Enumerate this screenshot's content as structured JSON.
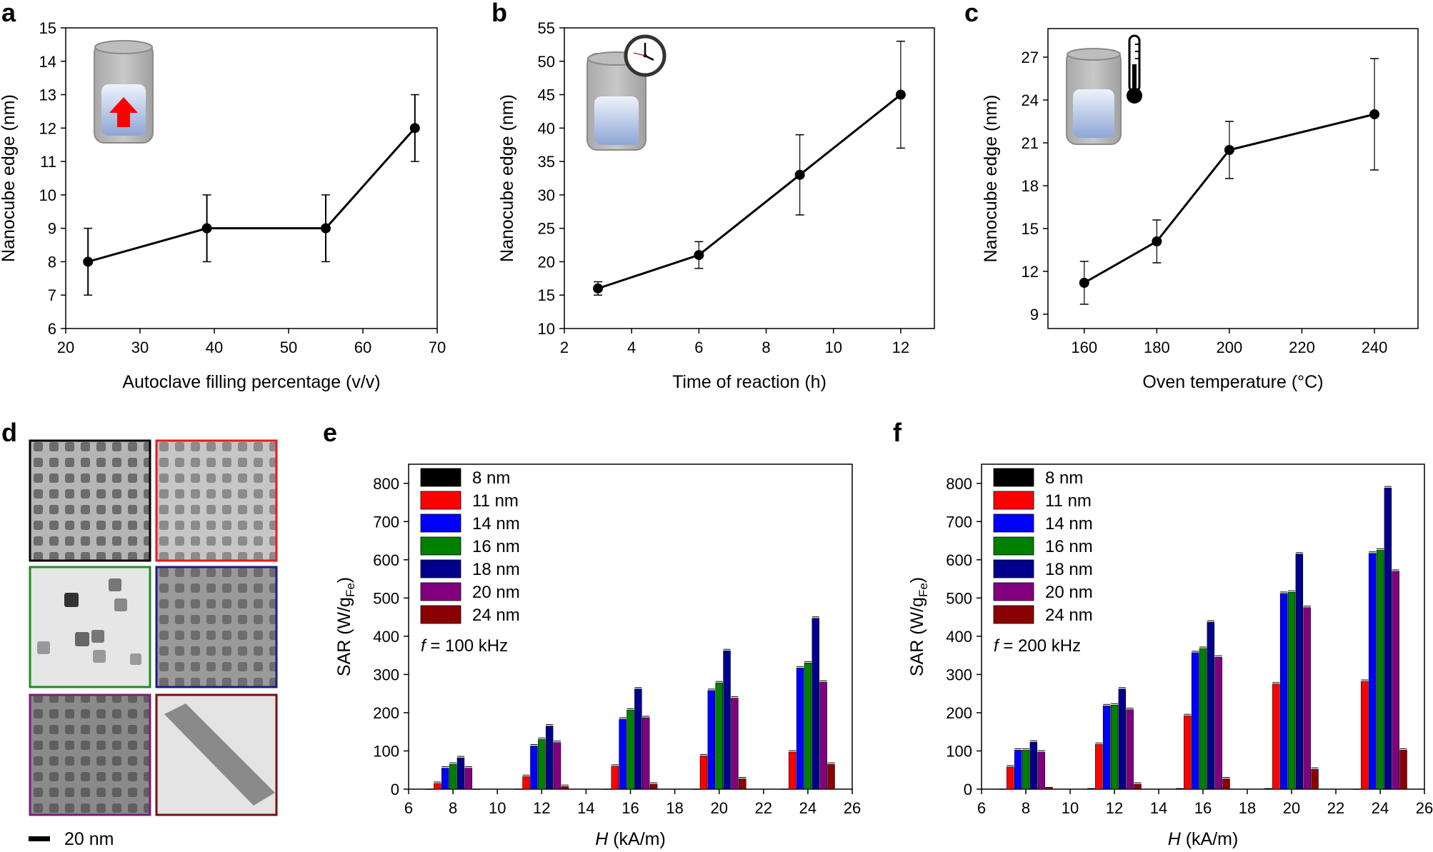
{
  "panels": {
    "a": "a",
    "b": "b",
    "c": "c",
    "d": "d",
    "e": "e",
    "f": "f"
  },
  "micrograph": {
    "scale_bar_label": "20 nm",
    "frame_colors": [
      "#000000",
      "#e41a1c",
      "#1e8c1e",
      "#1a1a8c",
      "#7b1c7b",
      "#7a1010"
    ]
  },
  "chart_data": [
    {
      "id": "a",
      "type": "line",
      "x": [
        23,
        39,
        55,
        67
      ],
      "y": [
        8,
        9,
        9,
        12
      ],
      "err": [
        1,
        1,
        1,
        1
      ],
      "xlabel": "Autoclave filling percentage (v/v)",
      "ylabel": "Nanocube edge (nm)",
      "xlim": [
        20,
        70
      ],
      "ylim": [
        6,
        15
      ],
      "xticks": [
        20,
        30,
        40,
        50,
        60,
        70
      ],
      "yticks": [
        6,
        7,
        8,
        9,
        10,
        11,
        12,
        13,
        14,
        15
      ],
      "icon": "autoclave-filling-icon"
    },
    {
      "id": "b",
      "type": "line",
      "x": [
        3,
        6,
        9,
        12
      ],
      "y": [
        16,
        21,
        33,
        45
      ],
      "err": [
        1,
        2,
        6,
        8
      ],
      "xlabel": "Time of reaction (h)",
      "ylabel": "Nanocube edge (nm)",
      "xlim": [
        2,
        13
      ],
      "ylim": [
        10,
        55
      ],
      "xticks": [
        2,
        4,
        6,
        8,
        10,
        12
      ],
      "yticks": [
        10,
        15,
        20,
        25,
        30,
        35,
        40,
        45,
        50,
        55
      ],
      "icon": "clock-icon"
    },
    {
      "id": "c",
      "type": "line",
      "x": [
        160,
        180,
        200,
        240
      ],
      "y": [
        11.2,
        14.1,
        20.5,
        23
      ],
      "err": [
        1.5,
        1.5,
        2,
        3.9
      ],
      "xlabel": "Oven temperature (°C)",
      "ylabel": "Nanocube edge (nm)",
      "xlim": [
        150,
        252
      ],
      "ylim": [
        8,
        29
      ],
      "xticks": [
        160,
        180,
        200,
        220,
        240
      ],
      "yticks": [
        9,
        12,
        15,
        18,
        21,
        24,
        27
      ],
      "icon": "thermometer-icon"
    },
    {
      "id": "e",
      "type": "bar",
      "categories": [
        8,
        12,
        16,
        20,
        24
      ],
      "series": [
        {
          "name": "8 nm",
          "color": "#000000",
          "values": [
            0,
            0,
            0,
            0,
            0
          ]
        },
        {
          "name": "11 nm",
          "color": "#ff0000",
          "values": [
            15,
            33,
            60,
            87,
            97
          ]
        },
        {
          "name": "14 nm",
          "color": "#0000ff",
          "values": [
            55,
            113,
            183,
            258,
            317
          ]
        },
        {
          "name": "16 nm",
          "color": "#008000",
          "values": [
            65,
            130,
            207,
            278,
            330
          ]
        },
        {
          "name": "18 nm",
          "color": "#00008b",
          "values": [
            82,
            165,
            262,
            362,
            447
          ]
        },
        {
          "name": "20 nm",
          "color": "#800080",
          "values": [
            55,
            122,
            187,
            238,
            280
          ]
        },
        {
          "name": "24 nm",
          "color": "#8b0000",
          "values": [
            0,
            7,
            13,
            27,
            65
          ]
        }
      ],
      "annotation_italic": "f",
      "annotation_rest": " = 100 kHz",
      "xlabel_italic": "H",
      "xlabel_rest": " (kA/m)",
      "ylabel_main": "SAR (W/g",
      "ylabel_sub": "Fe",
      "ylabel_close": ")",
      "xlim": [
        6,
        26
      ],
      "ylim": [
        0,
        850
      ],
      "xticks": [
        6,
        8,
        10,
        12,
        14,
        16,
        18,
        20,
        22,
        24,
        26
      ],
      "yticks": [
        0,
        100,
        200,
        300,
        400,
        500,
        600,
        700,
        800
      ]
    },
    {
      "id": "f",
      "type": "bar",
      "categories": [
        8,
        12,
        16,
        20,
        24
      ],
      "series": [
        {
          "name": "8 nm",
          "color": "#000000",
          "values": [
            0,
            2,
            2,
            2,
            0
          ]
        },
        {
          "name": "11 nm",
          "color": "#ff0000",
          "values": [
            58,
            117,
            192,
            275,
            282
          ]
        },
        {
          "name": "14 nm",
          "color": "#0000ff",
          "values": [
            102,
            218,
            357,
            512,
            617
          ]
        },
        {
          "name": "16 nm",
          "color": "#008000",
          "values": [
            102,
            220,
            368,
            515,
            625
          ]
        },
        {
          "name": "18 nm",
          "color": "#00008b",
          "values": [
            123,
            262,
            437,
            615,
            788
          ]
        },
        {
          "name": "20 nm",
          "color": "#800080",
          "values": [
            97,
            208,
            345,
            475,
            570
          ]
        },
        {
          "name": "24 nm",
          "color": "#8b0000",
          "values": [
            5,
            13,
            27,
            52,
            102
          ]
        }
      ],
      "annotation_italic": "f",
      "annotation_rest": " = 200 kHz",
      "xlabel_italic": "H",
      "xlabel_rest": " (kA/m)",
      "ylabel_main": "SAR (W/g",
      "ylabel_sub": "Fe",
      "ylabel_close": ")",
      "xlim": [
        6,
        26
      ],
      "ylim": [
        0,
        850
      ],
      "xticks": [
        6,
        8,
        10,
        12,
        14,
        16,
        18,
        20,
        22,
        24,
        26
      ],
      "yticks": [
        0,
        100,
        200,
        300,
        400,
        500,
        600,
        700,
        800
      ]
    }
  ]
}
